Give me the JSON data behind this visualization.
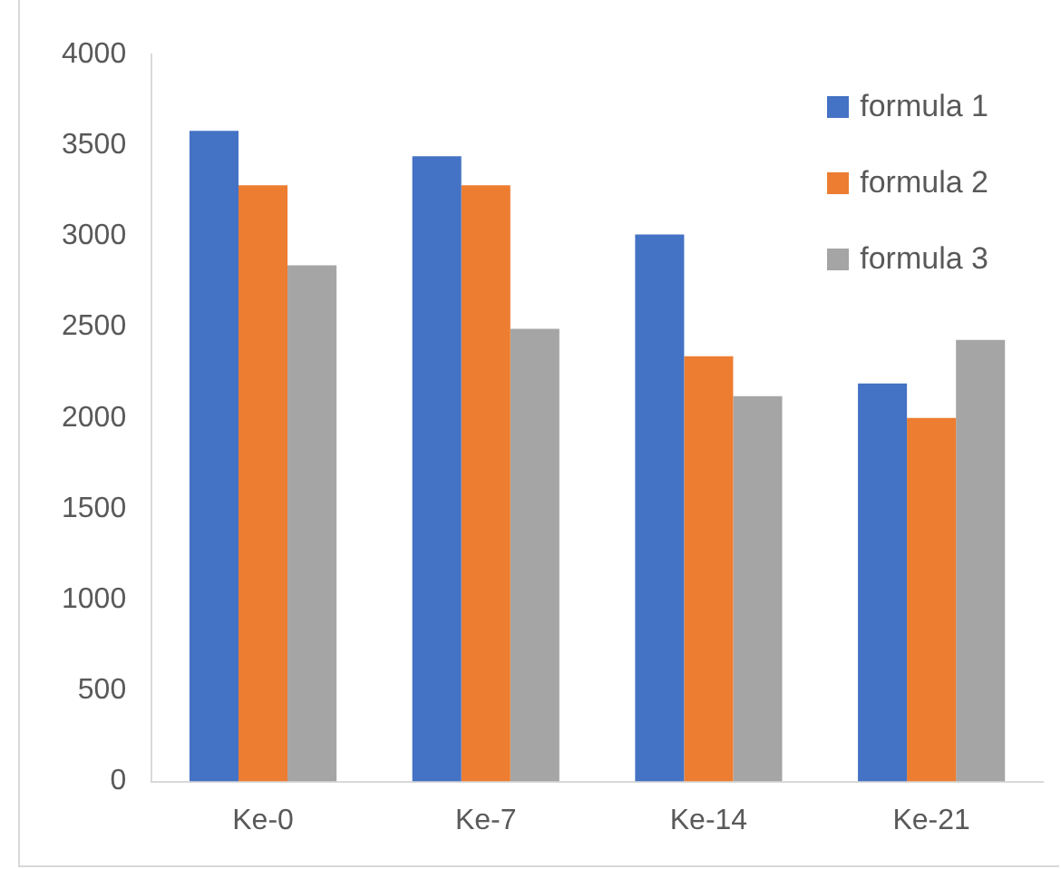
{
  "chart_data": {
    "type": "bar",
    "categories": [
      "Ke-0",
      "Ke-7",
      "Ke-14",
      "Ke-21"
    ],
    "series": [
      {
        "name": "formula 1",
        "color": "#4472c4",
        "values": [
          3580,
          3440,
          3010,
          2190
        ]
      },
      {
        "name": "formula 2",
        "color": "#ed7d31",
        "values": [
          3280,
          3280,
          2340,
          2000
        ]
      },
      {
        "name": "formula 3",
        "color": "#a5a5a5",
        "values": [
          2840,
          2490,
          2120,
          2430
        ]
      }
    ],
    "ylim": [
      0,
      4000
    ],
    "yticks": [
      0,
      500,
      1000,
      1500,
      2000,
      2500,
      3000,
      3500,
      4000
    ],
    "grid": false,
    "legend": "top right"
  }
}
